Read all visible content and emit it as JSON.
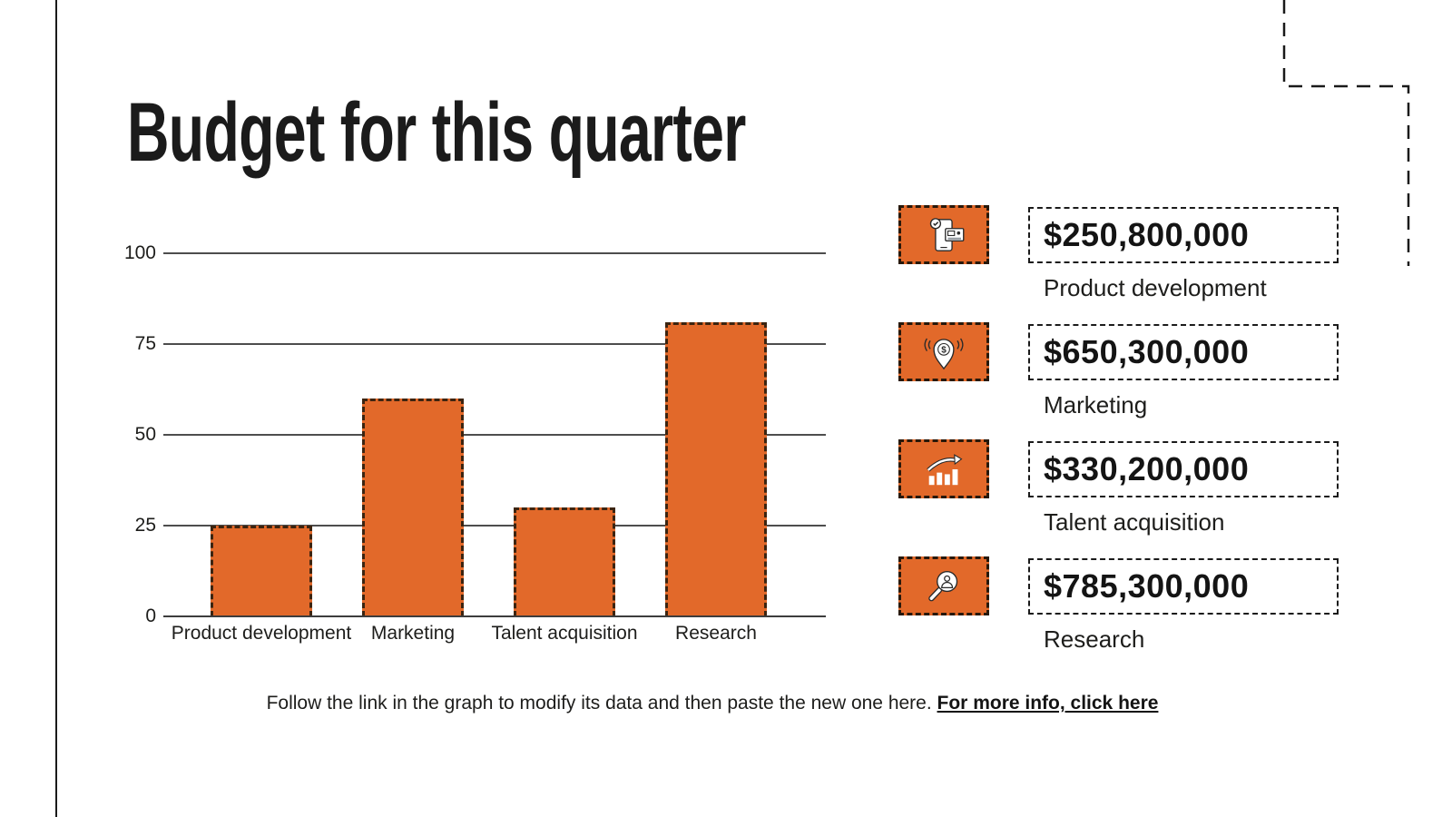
{
  "slide": {
    "title": "Budget for this quarter",
    "footer": {
      "text": "Follow the link in the graph to modify its data and then paste the new one here.",
      "link_label": "For more info, click here"
    }
  },
  "chart_data": {
    "type": "bar",
    "title": "",
    "categories": [
      "Product development",
      "Marketing",
      "Talent acquisition",
      "Research"
    ],
    "values": [
      25,
      60,
      30,
      81
    ],
    "xlabel": "",
    "ylabel": "",
    "ylim": [
      0,
      100
    ],
    "yticks": [
      0,
      25,
      50,
      75,
      100
    ],
    "grid": true,
    "legend": false,
    "bar_color": "#e2692a",
    "bar_border_color": "#3c2410"
  },
  "budget_items": [
    {
      "icon": "phone-check-card-icon",
      "amount": "$250,800,000",
      "label": "Product development"
    },
    {
      "icon": "dollar-location-pin-icon",
      "amount": "$650,300,000",
      "label": "Marketing"
    },
    {
      "icon": "growth-chart-icon",
      "amount": "$330,200,000",
      "label": "Talent acquisition"
    },
    {
      "icon": "person-magnifier-icon",
      "amount": "$785,300,000",
      "label": "Research"
    }
  ],
  "colors": {
    "accent_orange": "#e2692a",
    "text_dark": "#1d1d1b",
    "grid_line": "#4d4d4d"
  }
}
